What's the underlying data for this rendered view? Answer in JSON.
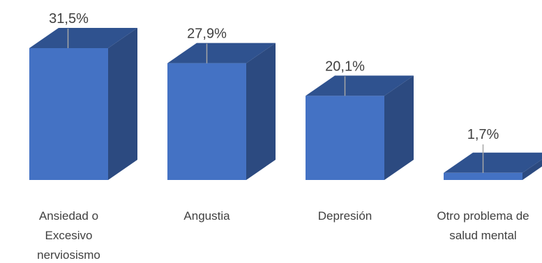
{
  "chart_data": {
    "type": "bar",
    "style": "3d-column",
    "categories": [
      [
        "Ansiedad o",
        "Excesivo",
        "nerviosismo"
      ],
      [
        "Angustia"
      ],
      [
        "Depresión"
      ],
      [
        "Otro problema de",
        "salud mental"
      ]
    ],
    "values": [
      31.5,
      27.9,
      20.1,
      1.7
    ],
    "data_labels": [
      "31,5%",
      "27,9%",
      "20,1%",
      "1,7%"
    ],
    "unit": "%",
    "title": "",
    "xlabel": "",
    "ylabel": "",
    "grid": false,
    "legend": "none",
    "colors": {
      "front": "#4472c4",
      "top": "#2f528f",
      "side": "#2c4a80",
      "leader": "#a6a6a6",
      "text": "#404040"
    }
  }
}
